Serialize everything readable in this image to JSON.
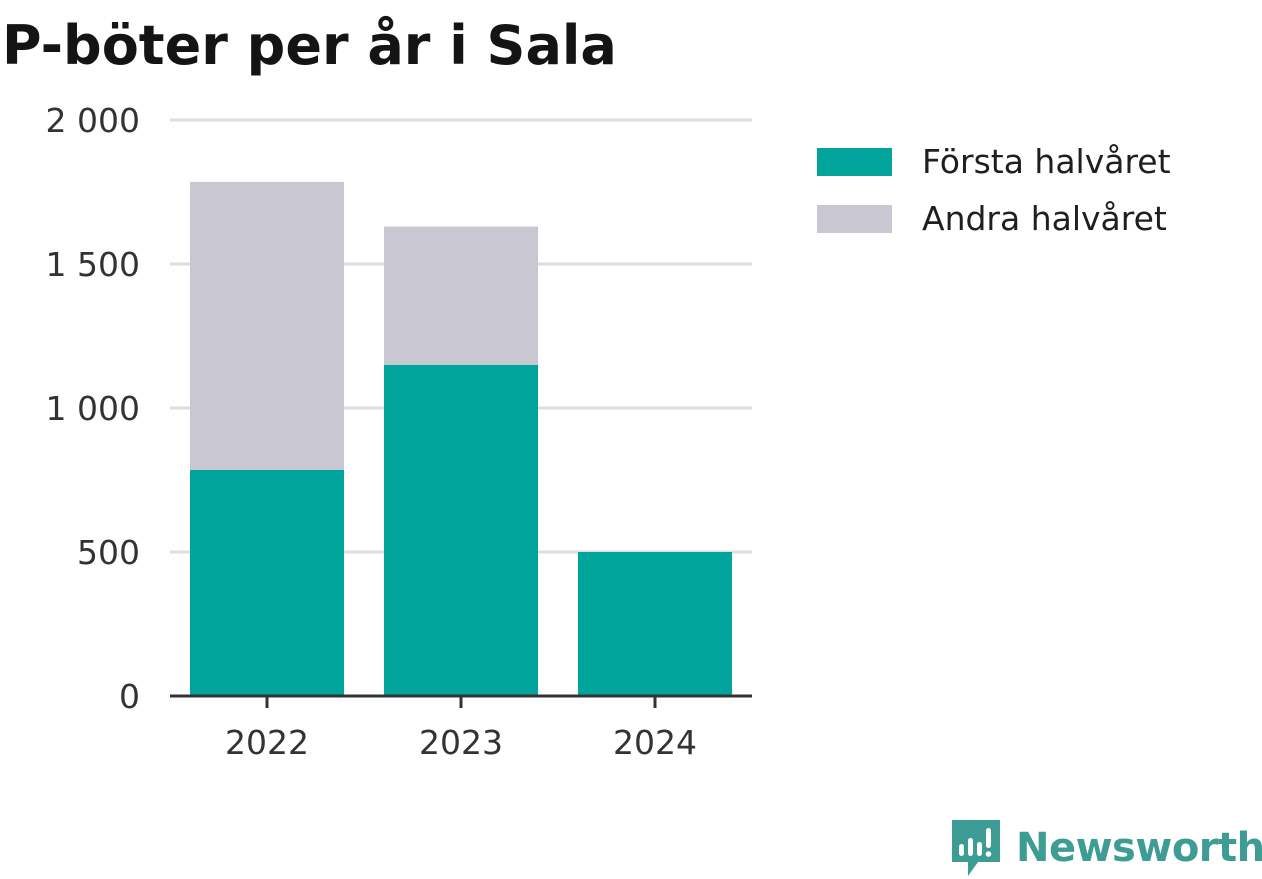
{
  "chart_data": {
    "type": "bar",
    "stacked": true,
    "title": "P-böter per år i Sala",
    "categories": [
      "2022",
      "2023",
      "2024"
    ],
    "series": [
      {
        "name": "Första halvåret",
        "values": [
          785,
          1150,
          500
        ],
        "color": "#00a49a"
      },
      {
        "name": "Andra halvåret",
        "values": [
          1000,
          480,
          0
        ],
        "color": "#c8c7d2"
      }
    ],
    "xlabel": "",
    "ylabel": "",
    "ylim": [
      0,
      2000
    ],
    "yticks": [
      0,
      500,
      1000,
      1500,
      2000
    ],
    "ytick_labels": [
      "0",
      "500",
      "1 000",
      "1 500",
      "2 000"
    ],
    "grid": true,
    "legend_position": "right"
  },
  "brand": {
    "name": "Newsworthy",
    "color": "#3d9c93",
    "logo_icon": "newsworthy-logo-icon"
  }
}
